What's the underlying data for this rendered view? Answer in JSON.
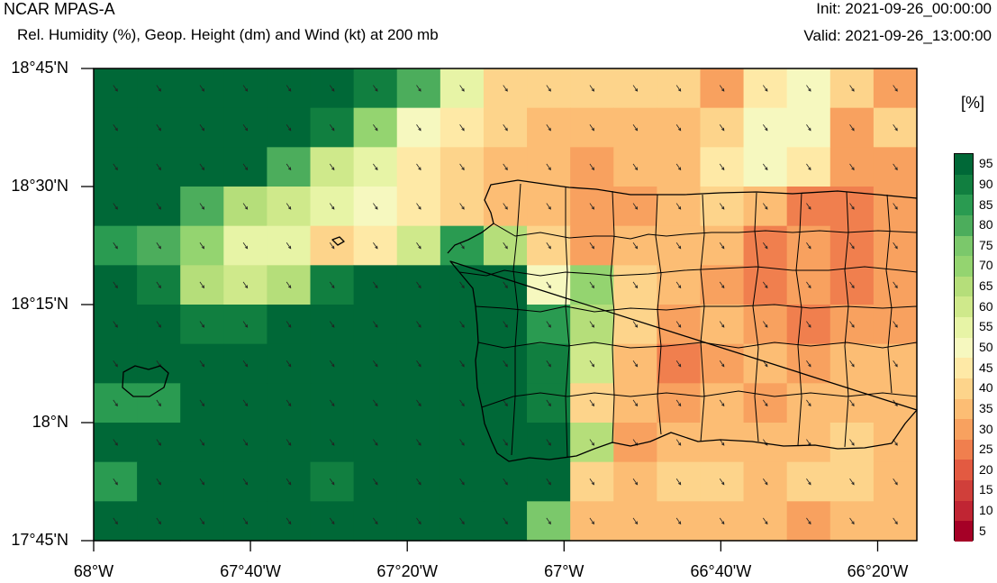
{
  "header": {
    "model": "NCAR MPAS-A",
    "subtitle": "Rel. Humidity (%), Geop. Height (dm) and Wind (kt) at 200 mb",
    "init": "Init: 2021-09-26_00:00:00",
    "valid": "Valid: 2021-09-26_13:00:00"
  },
  "map": {
    "lat_labels": [
      "18°45'N",
      "18°30'N",
      "18°15'N",
      "18°N",
      "17°45'N"
    ],
    "lon_labels": [
      "68°W",
      "67°40'W",
      "67°20'W",
      "67°W",
      "66°40'W",
      "66°20'W"
    ],
    "lat_values": [
      18.75,
      18.5,
      18.25,
      18.0,
      17.75
    ],
    "lon_values": [
      -68.0,
      -67.6667,
      -67.3333,
      -67.0,
      -66.6667,
      -66.3333
    ],
    "extent": {
      "lon": [
        -68.0,
        -66.25
      ],
      "lat": [
        17.75,
        18.75
      ]
    },
    "field": "relative humidity",
    "units": "[%]",
    "grid_rows_north_to_south": [
      [
        95,
        95,
        95,
        95,
        95,
        95,
        90,
        80,
        55,
        40,
        40,
        40,
        40,
        40,
        30,
        45,
        50,
        40,
        30
      ],
      [
        95,
        95,
        95,
        95,
        95,
        90,
        70,
        50,
        45,
        40,
        35,
        35,
        35,
        35,
        40,
        50,
        50,
        30,
        40
      ],
      [
        95,
        95,
        95,
        95,
        80,
        60,
        55,
        45,
        40,
        35,
        35,
        30,
        35,
        35,
        45,
        50,
        45,
        30,
        30
      ],
      [
        95,
        95,
        80,
        65,
        60,
        55,
        50,
        45,
        40,
        35,
        35,
        30,
        30,
        35,
        40,
        35,
        25,
        25,
        30
      ],
      [
        85,
        80,
        70,
        55,
        55,
        40,
        45,
        60,
        85,
        65,
        40,
        30,
        35,
        35,
        35,
        25,
        30,
        25,
        30
      ],
      [
        95,
        90,
        65,
        60,
        65,
        90,
        95,
        95,
        95,
        95,
        50,
        70,
        40,
        35,
        30,
        25,
        30,
        25,
        30
      ],
      [
        95,
        95,
        90,
        90,
        95,
        95,
        95,
        95,
        95,
        95,
        85,
        65,
        40,
        30,
        35,
        30,
        25,
        30,
        30
      ],
      [
        95,
        95,
        95,
        95,
        95,
        95,
        95,
        95,
        95,
        95,
        90,
        60,
        35,
        25,
        30,
        35,
        30,
        35,
        35
      ],
      [
        85,
        85,
        95,
        95,
        95,
        95,
        95,
        95,
        95,
        95,
        90,
        40,
        35,
        30,
        35,
        30,
        35,
        35,
        35
      ],
      [
        95,
        95,
        95,
        95,
        95,
        95,
        95,
        95,
        95,
        95,
        95,
        65,
        30,
        35,
        35,
        35,
        35,
        40,
        35
      ],
      [
        85,
        95,
        95,
        95,
        95,
        90,
        95,
        95,
        95,
        95,
        95,
        40,
        35,
        40,
        40,
        35,
        40,
        40,
        35
      ],
      [
        95,
        95,
        95,
        95,
        95,
        95,
        95,
        95,
        95,
        95,
        75,
        35,
        35,
        35,
        35,
        35,
        30,
        35,
        35
      ]
    ],
    "colorbar": {
      "levels": [
        "95",
        "90",
        "85",
        "80",
        "75",
        "70",
        "65",
        "60",
        "55",
        "50",
        "45",
        "40",
        "35",
        "30",
        "25",
        "20",
        "15",
        "10",
        "5"
      ],
      "colors": [
        "#006837",
        "#117f40",
        "#2a9b51",
        "#4cad5c",
        "#7bc86b",
        "#94d470",
        "#b5de7a",
        "#cfe98b",
        "#e7f4a6",
        "#f6f8bf",
        "#fee9a6",
        "#fdd48b",
        "#fcbd74",
        "#f8a15f",
        "#f07f4e",
        "#e35a41",
        "#d03f3a",
        "#c02533",
        "#a50026"
      ]
    },
    "wind_arrow_angle_deg": 55
  }
}
